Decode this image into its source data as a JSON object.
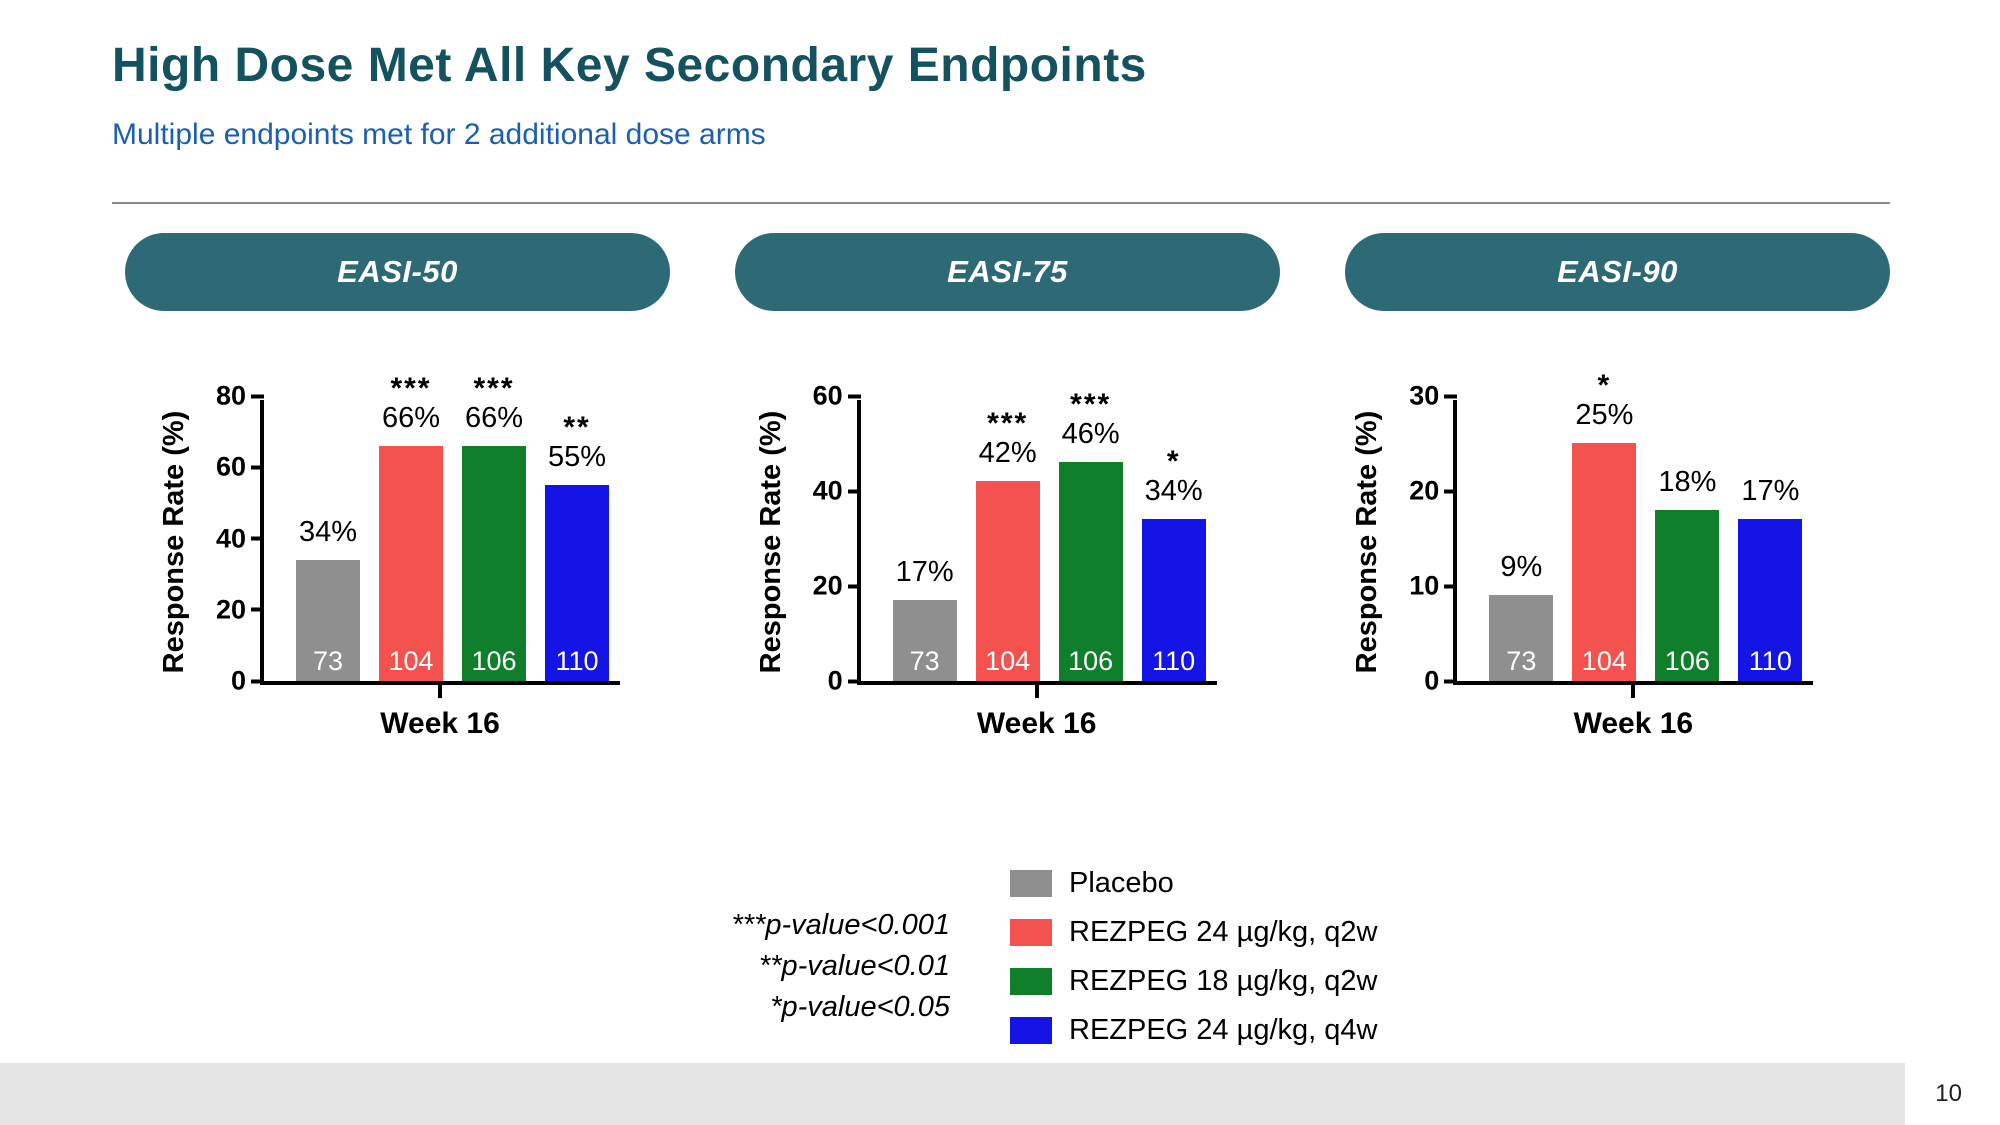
{
  "slide": {
    "title": "High Dose Met All Key Secondary Endpoints",
    "subtitle": "Multiple endpoints met for 2 additional dose arms",
    "page_number": "10"
  },
  "pvalue_notes": [
    "***p-value<0.001",
    "**p-value<0.01",
    "*p-value<0.05"
  ],
  "legend": [
    {
      "label": "Placebo",
      "color": "#8f8f8f"
    },
    {
      "label": "REZPEG 24 µg/kg, q2w",
      "color": "#f4524e"
    },
    {
      "label": "REZPEG 18 µg/kg, q2w",
      "color": "#0f7f2b"
    },
    {
      "label": "REZPEG 24 µg/kg, q4w",
      "color": "#1414e6"
    }
  ],
  "chart_data": [
    {
      "type": "bar",
      "title": "EASI-50",
      "categories": [
        "Week 16"
      ],
      "ylabel": "Response Rate (%)",
      "ylim": [
        0,
        80
      ],
      "yticks": [
        0,
        20,
        40,
        60,
        80
      ],
      "grid": false,
      "series": [
        {
          "name": "Placebo",
          "value": 34,
          "label": "34%",
          "n": "73",
          "significance": "",
          "color": "#8f8f8f"
        },
        {
          "name": "REZPEG 24 µg/kg, q2w",
          "value": 66,
          "label": "66%",
          "n": "104",
          "significance": "***",
          "color": "#f4524e"
        },
        {
          "name": "REZPEG 18 µg/kg, q2w",
          "value": 66,
          "label": "66%",
          "n": "106",
          "significance": "***",
          "color": "#0f7f2b"
        },
        {
          "name": "REZPEG 24 µg/kg, q4w",
          "value": 55,
          "label": "55%",
          "n": "110",
          "significance": "**",
          "color": "#1414e6"
        }
      ]
    },
    {
      "type": "bar",
      "title": "EASI-75",
      "categories": [
        "Week 16"
      ],
      "ylabel": "Response Rate (%)",
      "ylim": [
        0,
        60
      ],
      "yticks": [
        0,
        20,
        40,
        60
      ],
      "grid": false,
      "series": [
        {
          "name": "Placebo",
          "value": 17,
          "label": "17%",
          "n": "73",
          "significance": "",
          "color": "#8f8f8f"
        },
        {
          "name": "REZPEG 24 µg/kg, q2w",
          "value": 42,
          "label": "42%",
          "n": "104",
          "significance": "***",
          "color": "#f4524e"
        },
        {
          "name": "REZPEG 18 µg/kg, q2w",
          "value": 46,
          "label": "46%",
          "n": "106",
          "significance": "***",
          "color": "#0f7f2b"
        },
        {
          "name": "REZPEG 24 µg/kg, q4w",
          "value": 34,
          "label": "34%",
          "n": "110",
          "significance": "*",
          "color": "#1414e6"
        }
      ]
    },
    {
      "type": "bar",
      "title": "EASI-90",
      "categories": [
        "Week 16"
      ],
      "ylabel": "Response Rate (%)",
      "ylim": [
        0,
        30
      ],
      "yticks": [
        0,
        10,
        20,
        30
      ],
      "grid": false,
      "series": [
        {
          "name": "Placebo",
          "value": 9,
          "label": "9%",
          "n": "73",
          "significance": "",
          "color": "#8f8f8f"
        },
        {
          "name": "REZPEG 24 µg/kg, q2w",
          "value": 25,
          "label": "25%",
          "n": "104",
          "significance": "*",
          "color": "#f4524e"
        },
        {
          "name": "REZPEG 18 µg/kg, q2w",
          "value": 18,
          "label": "18%",
          "n": "106",
          "significance": "",
          "color": "#0f7f2b"
        },
        {
          "name": "REZPEG 24 µg/kg, q4w",
          "value": 17,
          "label": "17%",
          "n": "110",
          "significance": "",
          "color": "#1414e6"
        }
      ]
    }
  ]
}
